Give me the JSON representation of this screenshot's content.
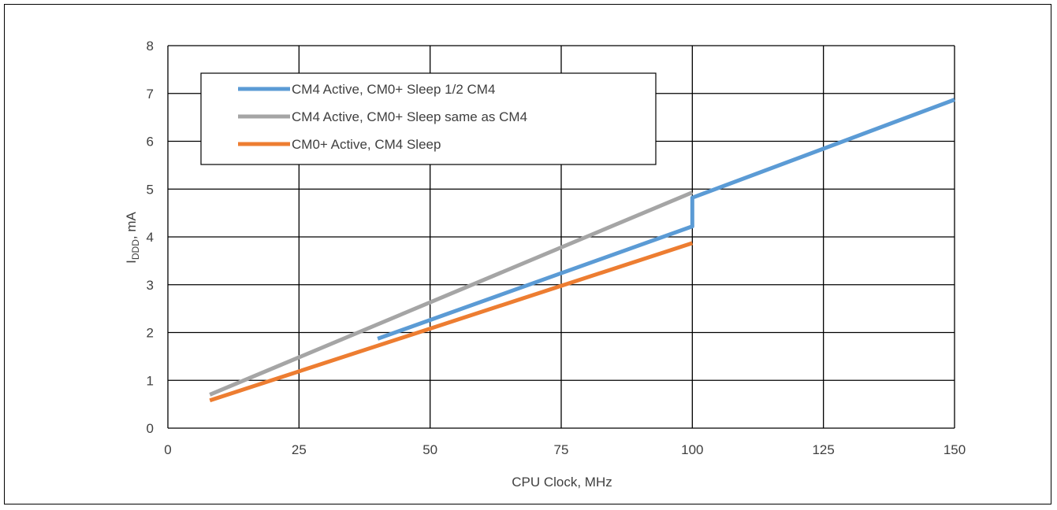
{
  "chart_data": {
    "type": "line",
    "xlabel": "CPU Clock, MHz",
    "ylabel": {
      "main": "I",
      "sub": "DDD",
      "rest": ", mA"
    },
    "xlim": [
      0,
      150
    ],
    "ylim": [
      0,
      8
    ],
    "xticks": [
      0,
      25,
      50,
      75,
      100,
      125,
      150
    ],
    "yticks": [
      0,
      1,
      2,
      3,
      4,
      5,
      6,
      7,
      8
    ],
    "grid": true,
    "legend_position": "top-left",
    "series": [
      {
        "name": "CM4 Active, CM0+ Sleep 1/2 CM4",
        "color": "#5B9BD5",
        "x": [
          40,
          100,
          100,
          150
        ],
        "y": [
          1.87,
          4.22,
          4.82,
          6.87
        ]
      },
      {
        "name": "CM4 Active, CM0+ Sleep same as CM4",
        "color": "#A5A5A5",
        "x": [
          8,
          100
        ],
        "y": [
          0.7,
          4.93
        ]
      },
      {
        "name": "CM0+ Active, CM4 Sleep",
        "color": "#ED7D31",
        "x": [
          8,
          100
        ],
        "y": [
          0.58,
          3.87
        ]
      }
    ]
  }
}
